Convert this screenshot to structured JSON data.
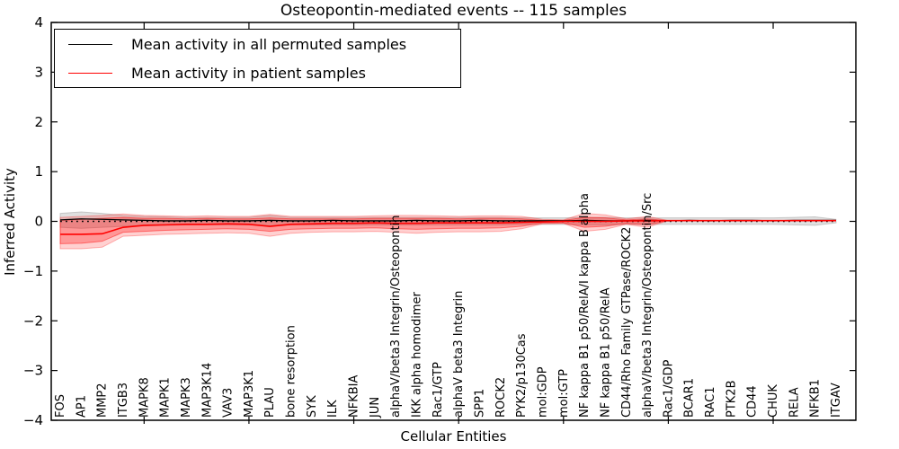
{
  "window": {
    "kind": "matplotlib-figure"
  },
  "chart_data": {
    "type": "line",
    "title": "Osteopontin-mediated events -- 115 samples",
    "xlabel": "Cellular Entities",
    "ylabel": "Inferred Activity",
    "ylim": [
      -4,
      4
    ],
    "grid": false,
    "legend_position": "upper left",
    "zero_line": true,
    "yticks": [
      {
        "value": 4,
        "label": "4"
      },
      {
        "value": 3,
        "label": "3"
      },
      {
        "value": 2,
        "label": "2"
      },
      {
        "value": 1,
        "label": "1"
      },
      {
        "value": 0,
        "label": "0"
      },
      {
        "value": -1,
        "label": "−1"
      },
      {
        "value": -2,
        "label": "−2"
      },
      {
        "value": -3,
        "label": "−3"
      },
      {
        "value": -4,
        "label": "−4"
      }
    ],
    "xtick_indices": [
      4,
      9,
      14,
      19,
      24,
      29,
      34
    ],
    "categories": [
      "FOS",
      "AP1",
      "MMP2",
      "ITGB3",
      "MAPK8",
      "MAPK1",
      "MAPK3",
      "MAP3K14",
      "VAV3",
      "MAP3K1",
      "PLAU",
      "bone resorption",
      "SYK",
      "ILK",
      "NFKBIA",
      "JUN",
      "alphaV/beta3 Integrin/Osteopontin",
      "IKK alpha homodimer",
      "Rac1/GTP",
      "alphaV beta3 Integrin",
      "SPP1",
      "ROCK2",
      "PYK2/p130Cas",
      "mol:GDP",
      "mol:GTP",
      "NF kappa B1 p50/RelA/I kappa B alpha",
      "NF kappa B1 p50/RelA",
      "CD44/Rho Family GTPase/ROCK2",
      "alphaV/beta3 Integrin/Osteopontin/Src",
      "Rac1/GDP",
      "BCAR1",
      "RAC1",
      "PTK2B",
      "CD44",
      "CHUK",
      "RELA",
      "NFKB1",
      "ITGAV"
    ],
    "legend": [
      {
        "label": "Mean activity in all permuted samples",
        "color": "#000000"
      },
      {
        "label": "Mean activity in patient samples",
        "color": "#ff0000"
      }
    ],
    "series": [
      {
        "name": "Mean activity in all permuted samples",
        "color": "#000000",
        "width": 1.3,
        "values": [
          0.03,
          0.05,
          0.04,
          0.03,
          0.02,
          0.01,
          0.01,
          0.02,
          0.01,
          0.01,
          0.02,
          0.01,
          0.01,
          0.02,
          0.01,
          0.01,
          0.01,
          0.02,
          0.01,
          0.01,
          0.02,
          0.01,
          0.01,
          0.01,
          0.01,
          0.02,
          0.01,
          0.01,
          0.02,
          0.01,
          0.02,
          0.01,
          0.02,
          0.02,
          0.01,
          0.02,
          0.02,
          0.02
        ]
      },
      {
        "name": "Mean activity in patient samples",
        "color": "#ff0000",
        "width": 1.6,
        "values": [
          -0.26,
          -0.26,
          -0.25,
          -0.12,
          -0.08,
          -0.07,
          -0.06,
          -0.06,
          -0.05,
          -0.06,
          -0.1,
          -0.06,
          -0.05,
          -0.04,
          -0.04,
          -0.03,
          -0.04,
          -0.04,
          -0.03,
          -0.03,
          -0.03,
          -0.03,
          -0.02,
          -0.01,
          0.0,
          0.0,
          0.0,
          0.01,
          0.01,
          0.015,
          0.015,
          0.015,
          0.015,
          0.015,
          0.015,
          0.015,
          0.015,
          0.015
        ]
      }
    ],
    "bands": [
      {
        "name": "permuted-samples-spread",
        "color": "#999999",
        "opacity": 0.3,
        "upper": [
          0.16,
          0.19,
          0.16,
          0.12,
          0.1,
          0.09,
          0.08,
          0.08,
          0.08,
          0.08,
          0.12,
          0.08,
          0.08,
          0.08,
          0.08,
          0.08,
          0.08,
          0.08,
          0.08,
          0.08,
          0.08,
          0.08,
          0.07,
          0.07,
          0.07,
          0.08,
          0.08,
          0.07,
          0.07,
          0.07,
          0.07,
          0.07,
          0.07,
          0.07,
          0.07,
          0.08,
          0.09,
          0.04
        ],
        "lower": [
          -0.12,
          -0.14,
          -0.12,
          -0.1,
          -0.09,
          -0.08,
          -0.07,
          -0.07,
          -0.07,
          -0.07,
          -0.09,
          -0.07,
          -0.07,
          -0.07,
          -0.07,
          -0.07,
          -0.07,
          -0.07,
          -0.07,
          -0.07,
          -0.07,
          -0.07,
          -0.06,
          -0.06,
          -0.06,
          -0.07,
          -0.07,
          -0.06,
          -0.06,
          -0.06,
          -0.06,
          -0.06,
          -0.06,
          -0.06,
          -0.06,
          -0.07,
          -0.08,
          -0.03
        ]
      },
      {
        "name": "patient-samples-spread-outer",
        "color": "#ff0000",
        "opacity": 0.18,
        "upper": [
          0.08,
          0.1,
          0.12,
          0.15,
          0.12,
          0.11,
          0.1,
          0.11,
          0.1,
          0.1,
          0.14,
          0.1,
          0.1,
          0.1,
          0.1,
          0.11,
          0.12,
          0.12,
          0.11,
          0.1,
          0.11,
          0.11,
          0.1,
          0.04,
          0.03,
          0.16,
          0.13,
          0.05,
          0.1,
          0.015,
          0.015,
          0.015,
          0.015,
          0.015,
          0.015,
          0.015,
          0.015,
          0.015
        ],
        "lower": [
          -0.55,
          -0.55,
          -0.52,
          -0.3,
          -0.28,
          -0.26,
          -0.25,
          -0.24,
          -0.23,
          -0.24,
          -0.3,
          -0.24,
          -0.22,
          -0.21,
          -0.21,
          -0.2,
          -0.22,
          -0.24,
          -0.22,
          -0.21,
          -0.21,
          -0.2,
          -0.15,
          -0.05,
          -0.04,
          -0.2,
          -0.16,
          -0.06,
          -0.12,
          0.015,
          0.015,
          0.015,
          0.015,
          0.015,
          0.015,
          0.015,
          0.015,
          0.015
        ]
      },
      {
        "name": "patient-samples-spread-inner",
        "color": "#ff0000",
        "opacity": 0.28,
        "upper": [
          0.02,
          0.04,
          0.06,
          0.08,
          0.06,
          0.06,
          0.05,
          0.06,
          0.05,
          0.05,
          0.07,
          0.05,
          0.05,
          0.05,
          0.05,
          0.06,
          0.06,
          0.06,
          0.06,
          0.05,
          0.06,
          0.06,
          0.05,
          0.02,
          0.02,
          0.08,
          0.07,
          0.03,
          0.05,
          0.015,
          0.015,
          0.015,
          0.015,
          0.015,
          0.015,
          0.015,
          0.015,
          0.015
        ],
        "lower": [
          -0.45,
          -0.44,
          -0.4,
          -0.22,
          -0.2,
          -0.18,
          -0.17,
          -0.16,
          -0.15,
          -0.16,
          -0.2,
          -0.16,
          -0.15,
          -0.14,
          -0.14,
          -0.13,
          -0.15,
          -0.16,
          -0.15,
          -0.14,
          -0.14,
          -0.13,
          -0.1,
          -0.03,
          -0.03,
          -0.12,
          -0.1,
          -0.04,
          -0.07,
          0.015,
          0.015,
          0.015,
          0.015,
          0.015,
          0.015,
          0.015,
          0.015,
          0.015
        ]
      }
    ]
  }
}
